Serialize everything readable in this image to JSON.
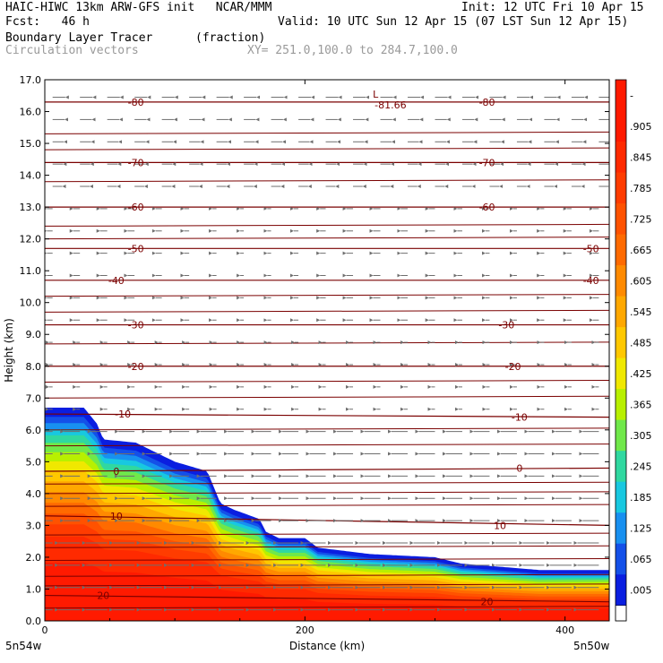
{
  "header": {
    "title_left": "HAIC-HIWC 13km ARW-GFS init   NCAR/MMM",
    "init": "Init: 12 UTC Fri 10 Apr 15",
    "fcst": "Fcst:   46 h",
    "valid": "Valid: 10 UTC Sun 12 Apr 15 (07 LST Sun 12 Apr 15)",
    "field1": "Boundary Layer Tracer",
    "field1_units": "(fraction)",
    "field2": "Circulation vectors",
    "xy": "XY= 251.0,100.0 to 284.7,100.0"
  },
  "axes": {
    "ylabel": "Height (km)",
    "xlabel": "Distance (km)",
    "left_corner": "5n54w",
    "right_corner": "5n50w"
  },
  "colors": {
    "contour": "#7a0000",
    "vector": "#6e6e6e"
  },
  "chart_data": {
    "type": "heatmap",
    "x_range": [
      0,
      434
    ],
    "y_range": [
      0,
      17
    ],
    "x_ticks": [
      "0",
      "200",
      "400"
    ],
    "y_ticks": [
      "0.0",
      "1.0",
      "2.0",
      "3.0",
      "4.0",
      "5.0",
      "6.0",
      "7.0",
      "8.0",
      "9.0",
      "10.0",
      "11.0",
      "12.0",
      "13.0",
      "14.0",
      "15.0",
      "16.0",
      "17.0"
    ],
    "colorbar": {
      "labels": [
        "-",
        ".905",
        ".845",
        ".785",
        ".725",
        ".665",
        ".605",
        ".545",
        ".485",
        ".425",
        ".365",
        ".305",
        ".245",
        ".185",
        ".125",
        ".065",
        ".005"
      ],
      "colors": [
        "#ff1a00",
        "#ff1a00",
        "#ff2a00",
        "#ff3c00",
        "#ff5200",
        "#ff6a00",
        "#ff8a00",
        "#ffa800",
        "#ffc800",
        "#f0e800",
        "#b8f000",
        "#70e84a",
        "#30d8a0",
        "#18c8e0",
        "#1890f0",
        "#1450e8",
        "#0a1ee0"
      ],
      "min_color": "#ffffff"
    },
    "tracer_top_km": [
      [
        0,
        6.7
      ],
      [
        30,
        6.7
      ],
      [
        40,
        6.2
      ],
      [
        45,
        5.7
      ],
      [
        70,
        5.6
      ],
      [
        100,
        5.0
      ],
      [
        125,
        4.7
      ],
      [
        130,
        4.2
      ],
      [
        135,
        3.7
      ],
      [
        145,
        3.5
      ],
      [
        165,
        3.2
      ],
      [
        170,
        2.8
      ],
      [
        180,
        2.6
      ],
      [
        200,
        2.6
      ],
      [
        210,
        2.3
      ],
      [
        250,
        2.1
      ],
      [
        300,
        2.0
      ],
      [
        320,
        1.8
      ],
      [
        350,
        1.7
      ],
      [
        380,
        1.6
      ],
      [
        434,
        1.6
      ]
    ],
    "temperature_contours": [
      {
        "label": "-80",
        "y_left": 16.3,
        "y_right": 16.3,
        "label_positions": [
          [
            70,
            16.3
          ],
          [
            340,
            16.3
          ]
        ]
      },
      {
        "label": "-70",
        "y_left": 14.4,
        "y_right": 14.4,
        "label_positions": [
          [
            70,
            14.4
          ],
          [
            340,
            14.4
          ]
        ]
      },
      {
        "label": "-60",
        "y_left": 13.0,
        "y_right": 13.0,
        "label_positions": [
          [
            70,
            13.0
          ],
          [
            340,
            13.0
          ]
        ]
      },
      {
        "label": "-50",
        "y_left": 11.7,
        "y_right": 11.7,
        "label_positions": [
          [
            70,
            11.7
          ],
          [
            420,
            11.7
          ]
        ]
      },
      {
        "label": "-40",
        "y_left": 10.7,
        "y_right": 10.7,
        "label_positions": [
          [
            55,
            10.7
          ],
          [
            420,
            10.7
          ]
        ]
      },
      {
        "label": "-30",
        "y_left": 9.3,
        "y_right": 9.3,
        "label_positions": [
          [
            70,
            9.3
          ],
          [
            355,
            9.3
          ]
        ]
      },
      {
        "label": "-20",
        "y_left": 8.0,
        "y_right": 8.0,
        "label_positions": [
          [
            70,
            8.0
          ],
          [
            360,
            8.0
          ]
        ]
      },
      {
        "label": "-10",
        "y_left": 6.5,
        "y_right": 6.4,
        "label_positions": [
          [
            60,
            6.5
          ],
          [
            365,
            6.4
          ]
        ]
      },
      {
        "label": "0",
        "y_left": 4.7,
        "y_right": 4.8,
        "label_positions": [
          [
            55,
            4.7
          ],
          [
            365,
            4.8
          ]
        ]
      },
      {
        "label": "10",
        "y_left": 3.3,
        "y_right": 3.0,
        "label_positions": [
          [
            55,
            3.3
          ],
          [
            350,
            3.0
          ]
        ]
      },
      {
        "label": "20",
        "y_left": 0.8,
        "y_right": 0.6,
        "label_positions": [
          [
            45,
            0.8
          ],
          [
            340,
            0.6
          ]
        ]
      }
    ],
    "extra_contours_km": [
      17.0,
      15.3,
      14.8,
      13.8,
      12.4,
      12.0,
      10.2,
      9.7,
      8.7,
      7.5,
      7.0,
      6.0,
      5.5,
      4.3,
      4.0,
      3.6,
      2.7,
      2.3,
      1.9,
      1.4,
      1.1,
      0.4
    ],
    "minimum_label": {
      "text": "L",
      "value": "-81.66",
      "x": 255,
      "y": 16.6
    }
  }
}
